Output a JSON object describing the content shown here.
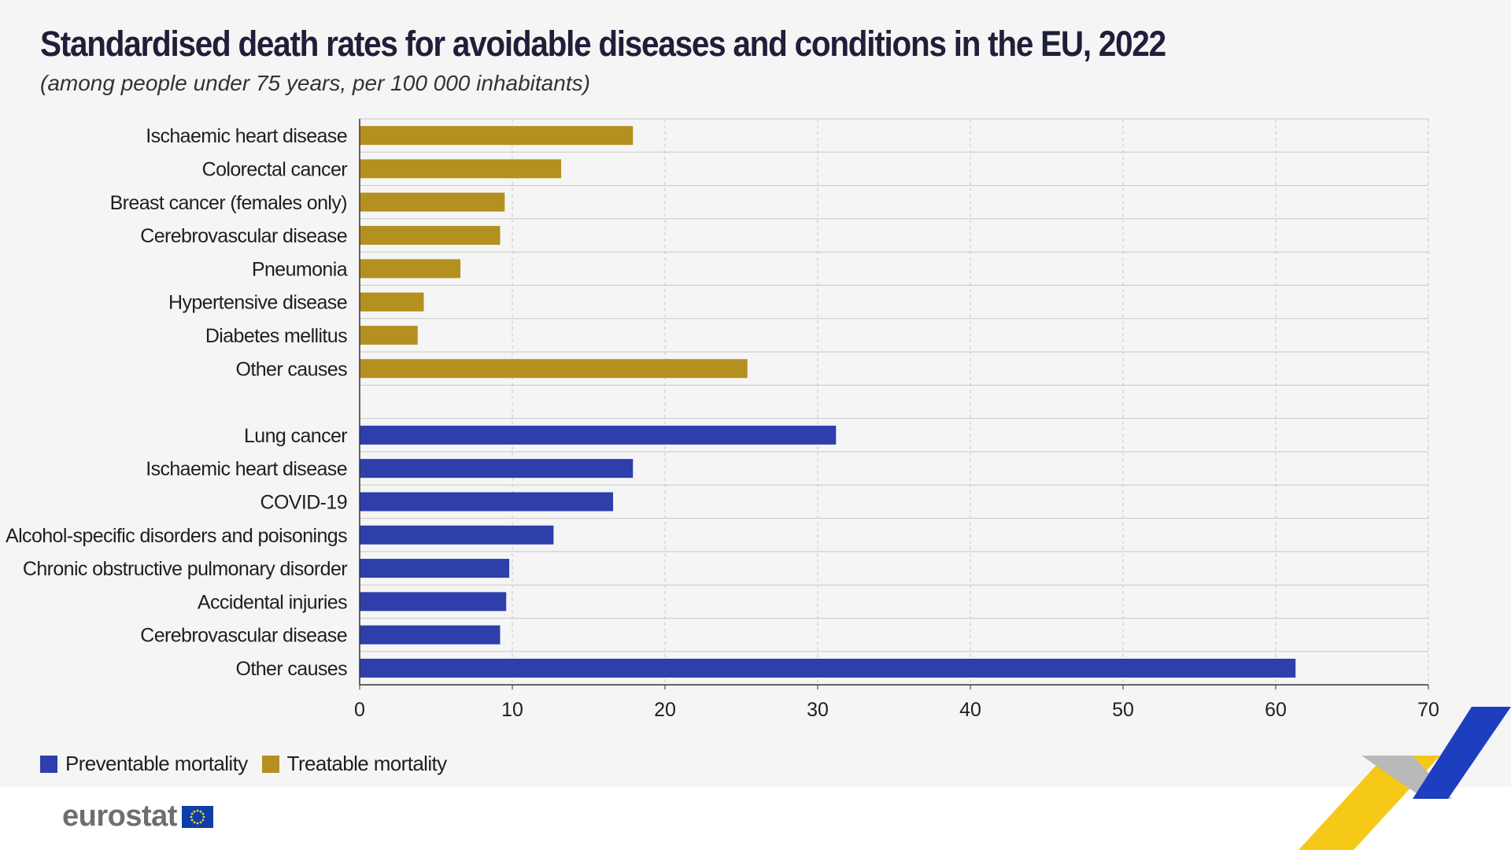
{
  "title": "Standardised death rates for avoidable diseases and conditions in the EU, 2022",
  "subtitle": "(among people under 75 years, per 100 000 inhabitants)",
  "colors": {
    "preventable": "#2e3eab",
    "treatable": "#b49020",
    "grid": "#c8c8c8",
    "axis": "#333333"
  },
  "chart_data": {
    "type": "bar",
    "orientation": "horizontal",
    "title": "Standardised death rates for avoidable diseases and conditions in the EU, 2022",
    "subtitle": "(among people under 75 years, per 100 000 inhabitants)",
    "xlim": [
      0,
      70
    ],
    "xticks": [
      0,
      10,
      20,
      30,
      40,
      50,
      60,
      70
    ],
    "grid": true,
    "legend_position": "bottom-left",
    "series": [
      {
        "name": "Treatable mortality",
        "color": "#b49020",
        "categories": [
          "Ischaemic heart disease",
          "Colorectal cancer",
          "Breast cancer (females only)",
          "Cerebrovascular disease",
          "Pneumonia",
          "Hypertensive disease",
          "Diabetes mellitus",
          "Other causes"
        ],
        "values": [
          17.9,
          13.2,
          9.5,
          9.2,
          6.6,
          4.2,
          3.8,
          25.4
        ]
      },
      {
        "name": "Preventable mortality",
        "color": "#2e3eab",
        "categories": [
          "Lung cancer",
          "Ischaemic heart disease",
          "COVID-19",
          "Alcohol-specific disorders and poisonings",
          "Chronic obstructive pulmonary disorder",
          "Accidental injuries",
          "Cerebrovascular disease",
          "Other causes"
        ],
        "values": [
          31.2,
          17.9,
          16.6,
          12.7,
          9.8,
          9.6,
          9.2,
          61.3
        ]
      }
    ]
  },
  "legend": [
    {
      "label": "Preventable mortality",
      "color": "#2e3eab"
    },
    {
      "label": "Treatable mortality",
      "color": "#b49020"
    }
  ],
  "logo": {
    "text": "eurostat"
  }
}
